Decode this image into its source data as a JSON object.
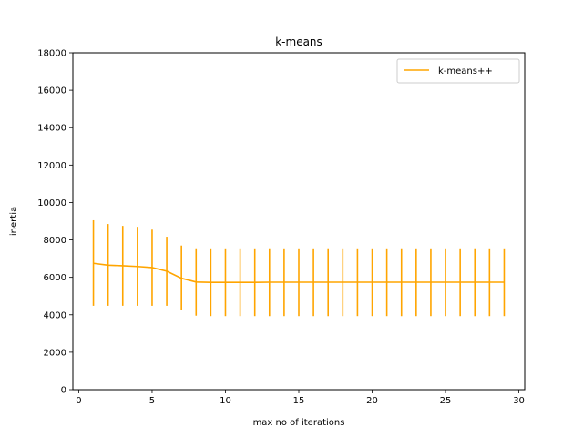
{
  "chart_data": {
    "type": "line",
    "title": "k-means",
    "xlabel": "max no of iterations",
    "ylabel": "inertia",
    "xlim": [
      -0.4,
      30.4
    ],
    "ylim": [
      0,
      18000
    ],
    "xticks": [
      0,
      5,
      10,
      15,
      20,
      25,
      30
    ],
    "yticks": [
      0,
      2000,
      4000,
      6000,
      8000,
      10000,
      12000,
      14000,
      16000,
      18000
    ],
    "grid": false,
    "legend_position": "top-right",
    "series": [
      {
        "name": "k-means++",
        "color": "#ffa500",
        "x": [
          1,
          2,
          3,
          4,
          5,
          6,
          7,
          8,
          9,
          10,
          11,
          12,
          13,
          14,
          15,
          16,
          17,
          18,
          19,
          20,
          21,
          22,
          23,
          24,
          25,
          26,
          27,
          28,
          29
        ],
        "y": [
          6750,
          6650,
          6620,
          6580,
          6520,
          6330,
          5950,
          5750,
          5730,
          5730,
          5730,
          5730,
          5740,
          5740,
          5740,
          5740,
          5740,
          5740,
          5740,
          5740,
          5740,
          5740,
          5740,
          5740,
          5740,
          5740,
          5740,
          5740,
          5740
        ],
        "error_low": [
          4480,
          4480,
          4480,
          4480,
          4480,
          4480,
          4240,
          3950,
          3930,
          3930,
          3930,
          3930,
          3930,
          3930,
          3930,
          3930,
          3930,
          3930,
          3930,
          3930,
          3930,
          3930,
          3930,
          3930,
          3930,
          3930,
          3930,
          3930,
          3930
        ],
        "error_high": [
          9050,
          8850,
          8750,
          8700,
          8550,
          8170,
          7700,
          7550,
          7550,
          7550,
          7550,
          7550,
          7550,
          7550,
          7550,
          7550,
          7550,
          7550,
          7550,
          7550,
          7550,
          7550,
          7550,
          7550,
          7550,
          7550,
          7550,
          7550,
          7550
        ]
      }
    ]
  }
}
